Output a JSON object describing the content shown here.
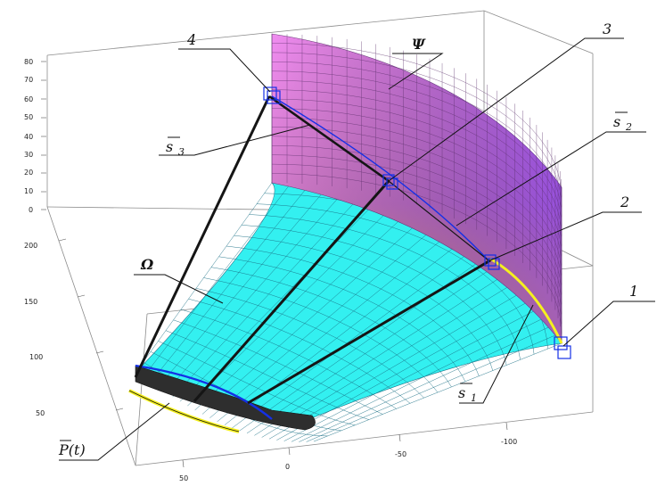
{
  "colors": {
    "box": "#8c8c8c",
    "omega_fill": "#33f0f0",
    "omega_grid": "#1a6f85",
    "psi_top": "#f08cf0",
    "psi_bottom": "#f0a060",
    "psi_right": "#9b50f0",
    "band_dark": "#2e2e2e",
    "band_yellow": "#f5f01e",
    "blue": "#1430e6",
    "ray": "#151515"
  },
  "labels": {
    "psi": "Ψ",
    "omega": "Ω",
    "n1": "1",
    "n2": "2",
    "n3": "3",
    "n4": "4",
    "s": "s",
    "s_sub1": "1",
    "s_sub2": "2",
    "s_sub3": "3",
    "p": "P(t)"
  },
  "axes": {
    "z_ticks": [
      "80",
      "70",
      "60",
      "50",
      "40",
      "30",
      "20",
      "10",
      "0"
    ],
    "y_ticks": [
      "200",
      "150",
      "100",
      "50"
    ],
    "x_ticks_front": [
      "50",
      "0",
      "-50",
      "-100"
    ]
  }
}
